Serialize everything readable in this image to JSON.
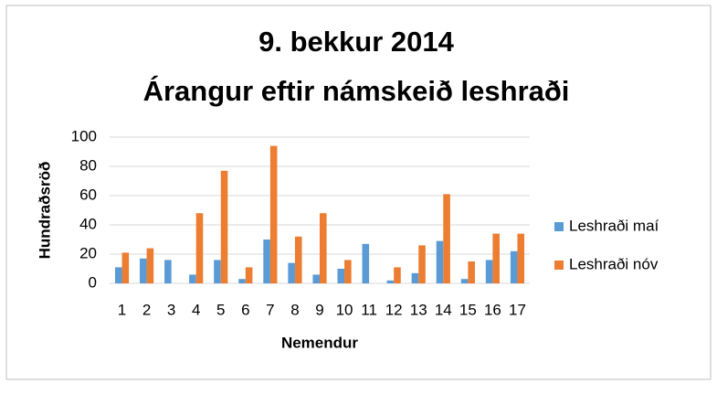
{
  "chart_data": {
    "type": "bar",
    "title": [
      "9. bekkur 2014",
      "Árangur eftir námskeið leshraði"
    ],
    "x_label": "Nemendur",
    "y_label": "Hundraðsröð",
    "categories": [
      "1",
      "2",
      "3",
      "4",
      "5",
      "6",
      "7",
      "8",
      "9",
      "10",
      "11",
      "12",
      "13",
      "14",
      "15",
      "16",
      "17"
    ],
    "series": [
      {
        "name": "Leshraði maí",
        "color": "#5b9bd5",
        "values": [
          11,
          17,
          16,
          6,
          16,
          3,
          30,
          14,
          6,
          10,
          27,
          2,
          7,
          29,
          3,
          16,
          22
        ]
      },
      {
        "name": "Leshraði nóv",
        "color": "#ed7d31",
        "values": [
          21,
          24,
          0,
          48,
          77,
          11,
          94,
          32,
          48,
          16,
          0,
          11,
          26,
          61,
          15,
          34,
          34
        ]
      }
    ],
    "ylim": [
      0,
      100
    ],
    "yticks": [
      0,
      20,
      40,
      60,
      80,
      100
    ],
    "grid": true,
    "legend": "right"
  }
}
